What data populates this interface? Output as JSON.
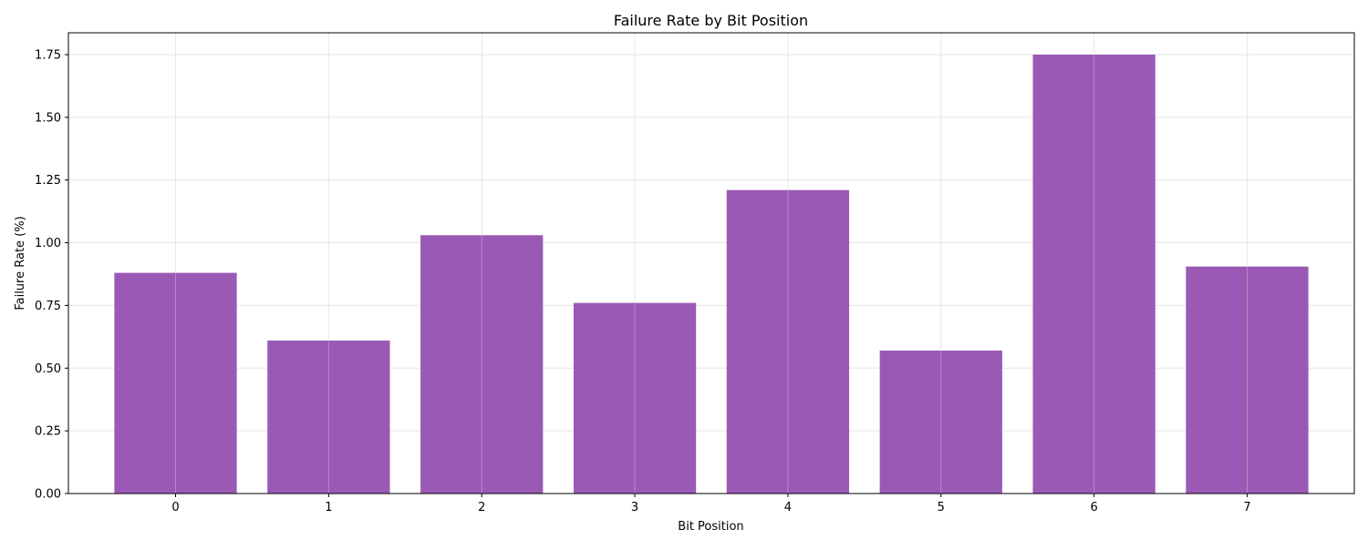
{
  "chart_data": {
    "type": "bar",
    "title": "Failure Rate by Bit Position",
    "xlabel": "Bit Position",
    "ylabel": "Failure Rate (%)",
    "categories": [
      "0",
      "1",
      "2",
      "3",
      "4",
      "5",
      "6",
      "7"
    ],
    "values": [
      0.88,
      0.61,
      1.03,
      0.76,
      1.21,
      0.57,
      1.75,
      0.905
    ],
    "ylim": [
      0,
      1.837
    ],
    "yticks": [
      "0.00",
      "0.25",
      "0.50",
      "0.75",
      "1.00",
      "1.25",
      "1.50",
      "1.75"
    ],
    "grid": true,
    "legend": "none",
    "colors": {
      "bar": "#9b59b6",
      "grid": "#e5e5e5",
      "axis": "#000000"
    }
  }
}
